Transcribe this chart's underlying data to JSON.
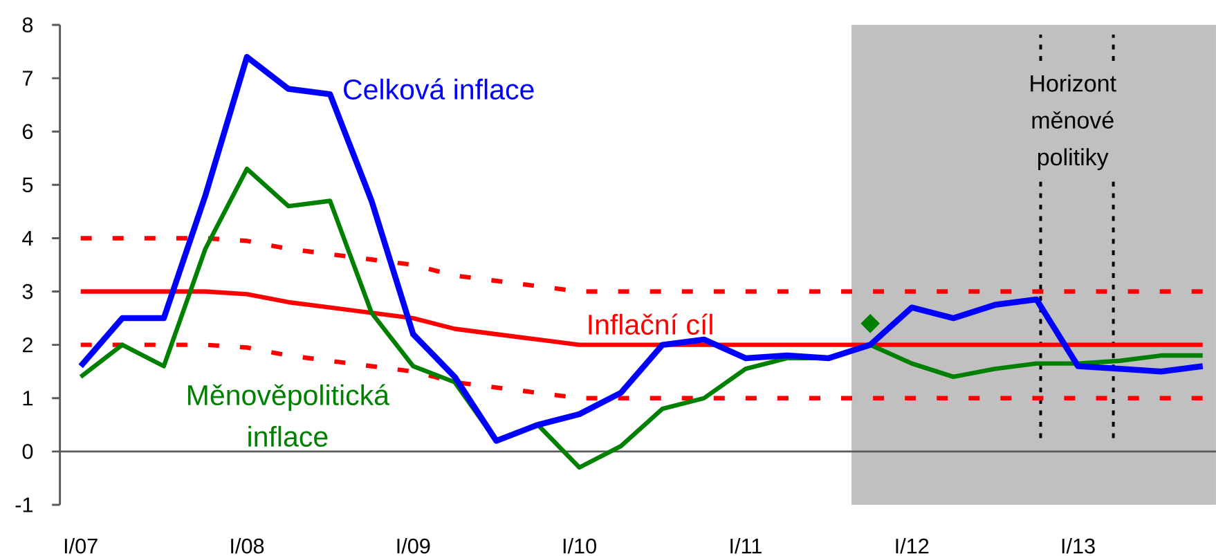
{
  "chart_data": {
    "type": "line",
    "categories": [
      "I/07",
      null,
      null,
      null,
      "I/08",
      null,
      null,
      null,
      "I/09",
      null,
      null,
      null,
      "I/10",
      null,
      null,
      null,
      "I/11",
      null,
      null,
      null,
      "I/12",
      null,
      null,
      null,
      "I/13",
      null,
      null,
      null
    ],
    "ylim": [
      -1,
      8
    ],
    "yticks": [
      -1,
      0,
      1,
      2,
      3,
      4,
      5,
      6,
      7,
      8
    ],
    "series": [
      {
        "name": "Celková inflace",
        "color": "#0000ff",
        "values": [
          1.6,
          2.5,
          2.5,
          4.8,
          7.4,
          6.8,
          6.7,
          4.7,
          2.2,
          1.4,
          0.2,
          0.5,
          0.7,
          1.1,
          2.0,
          2.1,
          1.75,
          1.8,
          1.75,
          2.0,
          2.7,
          2.5,
          2.75,
          2.85,
          1.6,
          1.55,
          1.5,
          1.6
        ]
      },
      {
        "name": "Měnověpolitická inflace",
        "color": "#008000",
        "values": [
          1.4,
          2.0,
          1.6,
          3.8,
          5.3,
          4.6,
          4.7,
          2.6,
          1.6,
          1.3,
          0.2,
          0.5,
          -0.3,
          0.1,
          0.8,
          1.0,
          1.55,
          1.75,
          1.75,
          2.0,
          1.65,
          1.4,
          1.55,
          1.65,
          1.65,
          1.7,
          1.8,
          1.8
        ]
      },
      {
        "name": "Inflační cíl",
        "color": "#ff0000",
        "values": [
          3,
          3,
          3,
          3,
          2.95,
          2.8,
          2.7,
          2.6,
          2.5,
          2.3,
          2.2,
          2.1,
          2,
          2,
          2,
          2,
          2,
          2,
          2,
          2,
          2,
          2,
          2,
          2,
          2,
          2,
          2,
          2
        ]
      },
      {
        "color": "#ff0000",
        "line_style": "dashed",
        "values": [
          4,
          4,
          4,
          4,
          3.95,
          3.8,
          3.7,
          3.6,
          3.5,
          3.3,
          3.2,
          3.1,
          3,
          3,
          3,
          3,
          3,
          3,
          3,
          3,
          3,
          3,
          3,
          3,
          3,
          3,
          3,
          3
        ]
      },
      {
        "color": "#ff0000",
        "line_style": "dashed",
        "values": [
          2,
          2,
          2,
          2,
          1.95,
          1.8,
          1.7,
          1.6,
          1.5,
          1.3,
          1.2,
          1.1,
          1,
          1,
          1,
          1,
          1,
          1,
          1,
          1,
          1,
          1,
          1,
          1,
          1,
          1,
          1,
          1
        ]
      },
      {
        "type": "scatter",
        "marker": "diamond",
        "color": "#008000",
        "values": [
          null,
          null,
          null,
          null,
          null,
          null,
          null,
          null,
          null,
          null,
          null,
          null,
          null,
          null,
          null,
          null,
          null,
          null,
          null,
          2.4,
          null,
          null,
          null,
          null,
          null,
          null,
          null,
          null
        ]
      }
    ],
    "annotations": [
      "Horizont měnové politiky"
    ]
  }
}
